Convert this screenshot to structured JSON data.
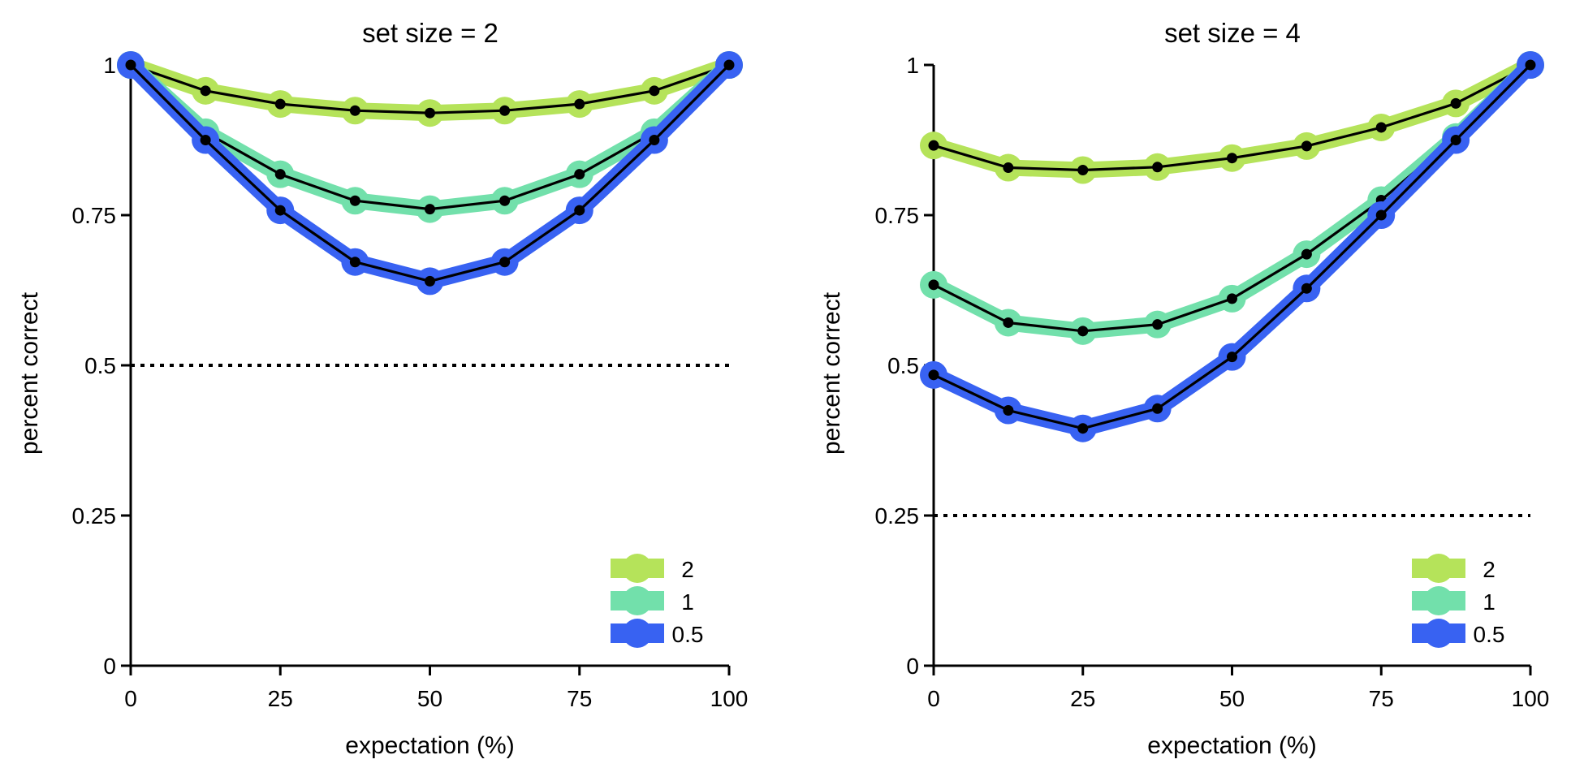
{
  "chart_data": [
    {
      "type": "line",
      "title": "set size = 2",
      "xlabel": "expectation (%)",
      "ylabel": "percent correct",
      "xlim": [
        0,
        100
      ],
      "ylim": [
        0,
        1
      ],
      "xticks": [
        "0",
        "25",
        "50",
        "75",
        "100"
      ],
      "yticks": [
        "0",
        "0.25",
        "0.5",
        "0.75",
        "1"
      ],
      "grid": false,
      "legend_position": "bottom-right",
      "chance_level": 0.5,
      "x": [
        0,
        12.5,
        25,
        37.5,
        50,
        62.5,
        75,
        87.5,
        100
      ],
      "series": [
        {
          "name": "2",
          "color": "#b5e35a",
          "values": [
            1.0,
            0.957,
            0.935,
            0.924,
            0.92,
            0.924,
            0.935,
            0.957,
            1.0
          ]
        },
        {
          "name": "1",
          "color": "#72e0ab",
          "values": [
            1.0,
            0.888,
            0.818,
            0.774,
            0.76,
            0.774,
            0.818,
            0.888,
            1.0
          ]
        },
        {
          "name": "0.5",
          "color": "#3862f2",
          "values": [
            1.0,
            0.875,
            0.758,
            0.672,
            0.64,
            0.672,
            0.758,
            0.875,
            1.0
          ]
        }
      ]
    },
    {
      "type": "line",
      "title": "set size = 4",
      "xlabel": "expectation (%)",
      "ylabel": "percent correct",
      "xlim": [
        0,
        100
      ],
      "ylim": [
        0,
        1
      ],
      "xticks": [
        "0",
        "25",
        "50",
        "75",
        "100"
      ],
      "yticks": [
        "0",
        "0.25",
        "0.5",
        "0.75",
        "1"
      ],
      "grid": false,
      "legend_position": "bottom-right",
      "chance_level": 0.25,
      "x": [
        0,
        12.5,
        25,
        37.5,
        50,
        62.5,
        75,
        87.5,
        100
      ],
      "series": [
        {
          "name": "2",
          "color": "#b5e35a",
          "values": [
            0.866,
            0.829,
            0.825,
            0.83,
            0.845,
            0.865,
            0.896,
            0.936,
            1.0
          ]
        },
        {
          "name": "1",
          "color": "#72e0ab",
          "values": [
            0.634,
            0.571,
            0.557,
            0.568,
            0.611,
            0.685,
            0.775,
            0.88,
            1.0
          ]
        },
        {
          "name": "0.5",
          "color": "#3862f2",
          "values": [
            0.484,
            0.425,
            0.395,
            0.428,
            0.514,
            0.628,
            0.75,
            0.875,
            1.0
          ]
        }
      ]
    }
  ]
}
